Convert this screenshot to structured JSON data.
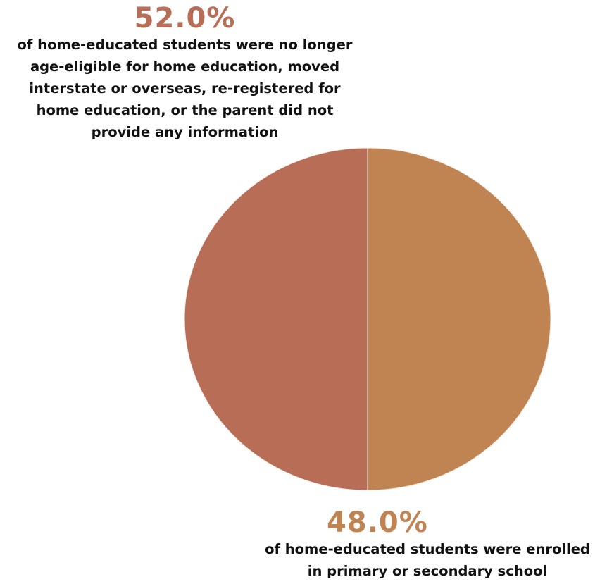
{
  "chart_data": {
    "type": "pie",
    "slices": [
      {
        "value": 52.0,
        "value_label": "52.0%",
        "description_lines": [
          "of home-educated students were no longer",
          "age-eligible for home education, moved",
          "interstate or overseas, re-registered for",
          "home education, or the parent did not",
          "provide any information"
        ],
        "color": "#b86e56"
      },
      {
        "value": 48.0,
        "value_label": "48.0%",
        "description_lines": [
          "of home-educated students were enrolled",
          "in primary or secondary school"
        ],
        "color": "#c08452"
      }
    ],
    "start_angle_deg": 0,
    "direction": "clockwise-from-top-larger-counterclockwise"
  }
}
